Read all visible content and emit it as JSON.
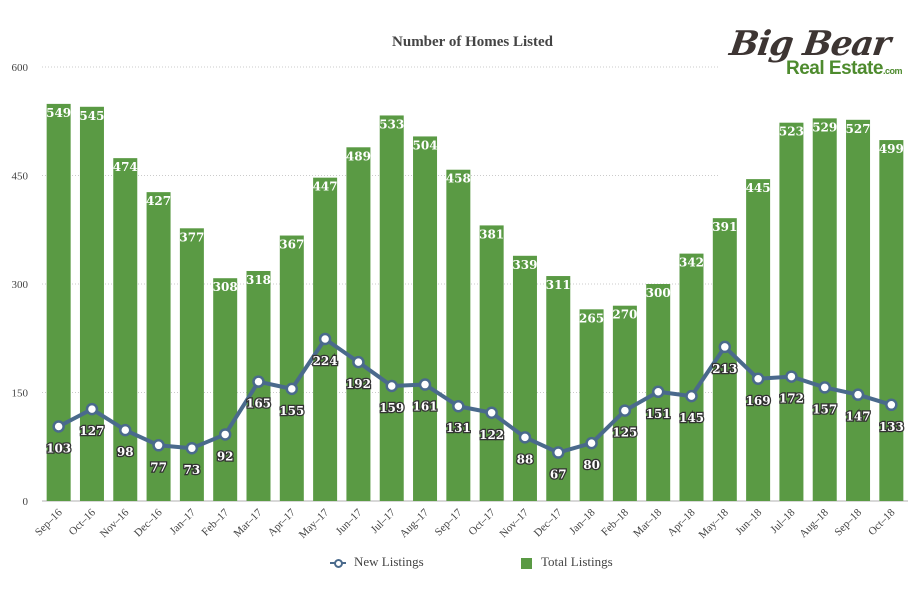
{
  "title": "Number of Homes Listed",
  "logo": {
    "line1": "Big Bear",
    "line2": "Real Estate",
    "suffix": ".com"
  },
  "legend": {
    "new": "New Listings",
    "total": "Total Listings"
  },
  "colors": {
    "bar": "#5a9a44",
    "line": "#4a6a8c",
    "grid": "#bbbbbb",
    "text": "#444444"
  },
  "chart_data": {
    "type": "bar",
    "title": "Number of Homes Listed",
    "ylim": [
      0,
      600
    ],
    "yticks": [
      0,
      150,
      300,
      450,
      600
    ],
    "grid": true,
    "legend_position": "bottom",
    "categories": [
      "Sep–16",
      "Oct–16",
      "Nov–16",
      "Dec–16",
      "Jan–17",
      "Feb–17",
      "Mar–17",
      "Apr–17",
      "May–17",
      "Jun–17",
      "Jul–17",
      "Aug–17",
      "Sep–17",
      "Oct–17",
      "Nov–17",
      "Dec–17",
      "Jan–18",
      "Feb–18",
      "Mar–18",
      "Apr–18",
      "May–18",
      "Jun–18",
      "Jul–18",
      "Aug–18",
      "Sep–18",
      "Oct–18"
    ],
    "series": [
      {
        "name": "Total Listings",
        "type": "bar",
        "values": [
          549,
          545,
          474,
          427,
          377,
          308,
          318,
          367,
          447,
          489,
          533,
          504,
          458,
          381,
          339,
          311,
          265,
          270,
          300,
          342,
          391,
          445,
          523,
          529,
          527,
          499
        ]
      },
      {
        "name": "New Listings",
        "type": "line",
        "values": [
          103,
          127,
          98,
          77,
          73,
          92,
          165,
          155,
          224,
          192,
          159,
          161,
          131,
          122,
          88,
          67,
          80,
          125,
          151,
          145,
          213,
          169,
          172,
          157,
          147,
          133
        ]
      }
    ]
  }
}
